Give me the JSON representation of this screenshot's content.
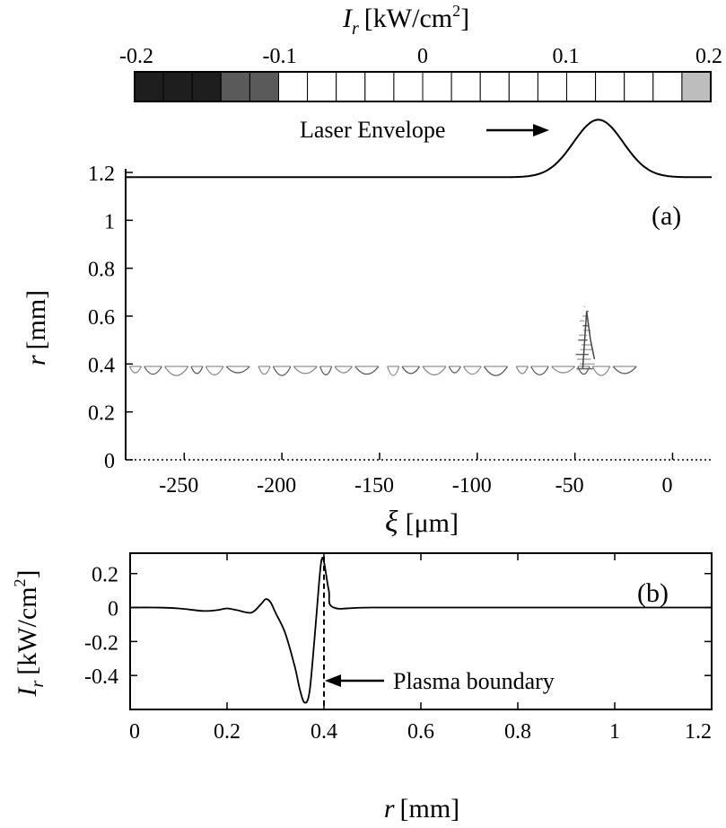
{
  "colorbar": {
    "label_symbol": "I",
    "label_sub": "r",
    "label_unit": "[kW/cm",
    "label_sup": "2",
    "label_close": "]",
    "ticks": [
      "-0.2",
      "-0.1",
      "0",
      "0.1",
      "0.2"
    ],
    "range": [
      -0.2,
      0.2
    ],
    "cells": 20
  },
  "panel_a": {
    "label": "(a)",
    "annotation": "Laser Envelope",
    "ylabel": "r [mm]",
    "ylabel_italic": "r",
    "ylabel_unit": "[mm]",
    "xlabel_symbol": "ξ",
    "xlabel_unit": "[μm]",
    "xticks": [
      "-250",
      "-200",
      "-150",
      "-100",
      "-50",
      "0"
    ],
    "yticks": [
      "0",
      "0.2",
      "0.4",
      "0.6",
      "0.8",
      "1",
      "1.2"
    ]
  },
  "panel_b": {
    "label": "(b)",
    "annotation": "Plasma boundary",
    "ylabel_symbol": "I",
    "ylabel_sub": "r",
    "ylabel_unit": "[kW/cm",
    "ylabel_sup": "2",
    "ylabel_close": "]",
    "xlabel_italic": "r",
    "xlabel_unit": "[mm]",
    "xticks": [
      "0",
      "0.2",
      "0.4",
      "0.6",
      "0.8",
      "1",
      "1.2"
    ],
    "yticks": [
      "0.2",
      "0",
      "-0.2",
      "-0.4"
    ]
  },
  "chart_data": [
    {
      "type": "heatmap",
      "panel": "(a)",
      "xlabel": "ξ [μm]",
      "ylabel": "r [mm]",
      "colorbar_label": "I_r [kW/cm^2]",
      "colorbar_range": [
        -0.2,
        0.2
      ],
      "xlim": [
        -280,
        20
      ],
      "ylim": [
        0,
        1.25
      ],
      "laser_envelope": {
        "baseline_r": 1.18,
        "peak_xi": -38,
        "peak_r": 1.42,
        "width": 18
      },
      "wake_band": {
        "xi_range": [
          -278,
          -15
        ],
        "r_center": 0.37,
        "r_halfwidth": 0.04
      },
      "tail_feature": {
        "xi": -45,
        "r_range": [
          0.38,
          0.64
        ]
      }
    },
    {
      "type": "line",
      "panel": "(b)",
      "xlabel": "r [mm]",
      "ylabel": "I_r [kW/cm^2]",
      "xlim": [
        0,
        1.2
      ],
      "ylim": [
        -0.6,
        0.32
      ],
      "x": [
        0,
        0.05,
        0.1,
        0.15,
        0.18,
        0.2,
        0.22,
        0.25,
        0.27,
        0.28,
        0.29,
        0.3,
        0.32,
        0.34,
        0.35,
        0.36,
        0.37,
        0.38,
        0.39,
        0.395,
        0.4,
        0.41,
        0.42,
        0.5,
        0.8,
        1.2
      ],
      "y": [
        0,
        0,
        -0.005,
        -0.02,
        -0.015,
        -0.005,
        -0.015,
        -0.03,
        0.02,
        0.05,
        0.03,
        -0.03,
        -0.15,
        -0.35,
        -0.48,
        -0.56,
        -0.5,
        -0.2,
        0.15,
        0.28,
        0.27,
        0.1,
        0.0,
        0.0,
        0.0,
        0.0
      ],
      "plasma_boundary_r": 0.4
    }
  ]
}
